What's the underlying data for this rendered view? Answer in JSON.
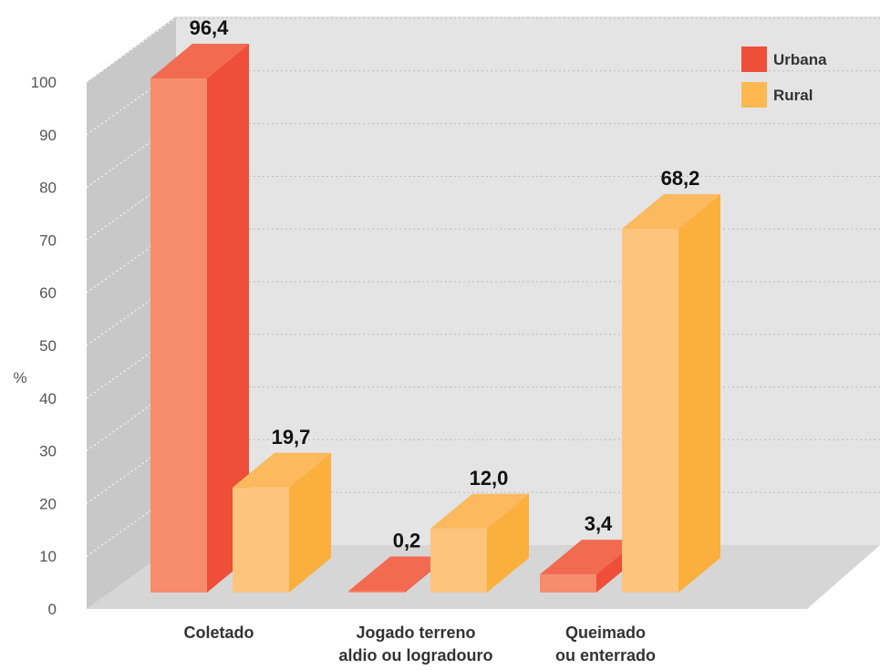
{
  "chart_data": {
    "type": "bar",
    "categories": [
      [
        "Coletado"
      ],
      [
        "Jogado terreno",
        "aldio ou logradouro"
      ],
      [
        "Queimado",
        "ou enterrado"
      ]
    ],
    "series": [
      {
        "name": "Urbana",
        "values": [
          96.4,
          0.2,
          3.4
        ],
        "labels": [
          "96,4",
          "0,2",
          "3,4"
        ],
        "color_front": "#F78C6C",
        "color_side": "#EF4E38",
        "color_top": "#F26B50"
      },
      {
        "name": "Rural",
        "values": [
          19.7,
          12.0,
          68.2
        ],
        "labels": [
          "19,7",
          "12,0",
          "68,2"
        ],
        "color_front": "#FDC57C",
        "color_side": "#FBAF3D",
        "color_top": "#FCB95E"
      }
    ],
    "ylabel": "%",
    "yticks": [
      "0",
      "10",
      "20",
      "30",
      "40",
      "50",
      "60",
      "70",
      "80",
      "90",
      "100"
    ],
    "ylim": [
      0,
      100
    ],
    "grid": true,
    "legend": "top-right",
    "legend_color_urbana": "#EF4E38",
    "legend_color_rural": "#FDB94F"
  }
}
